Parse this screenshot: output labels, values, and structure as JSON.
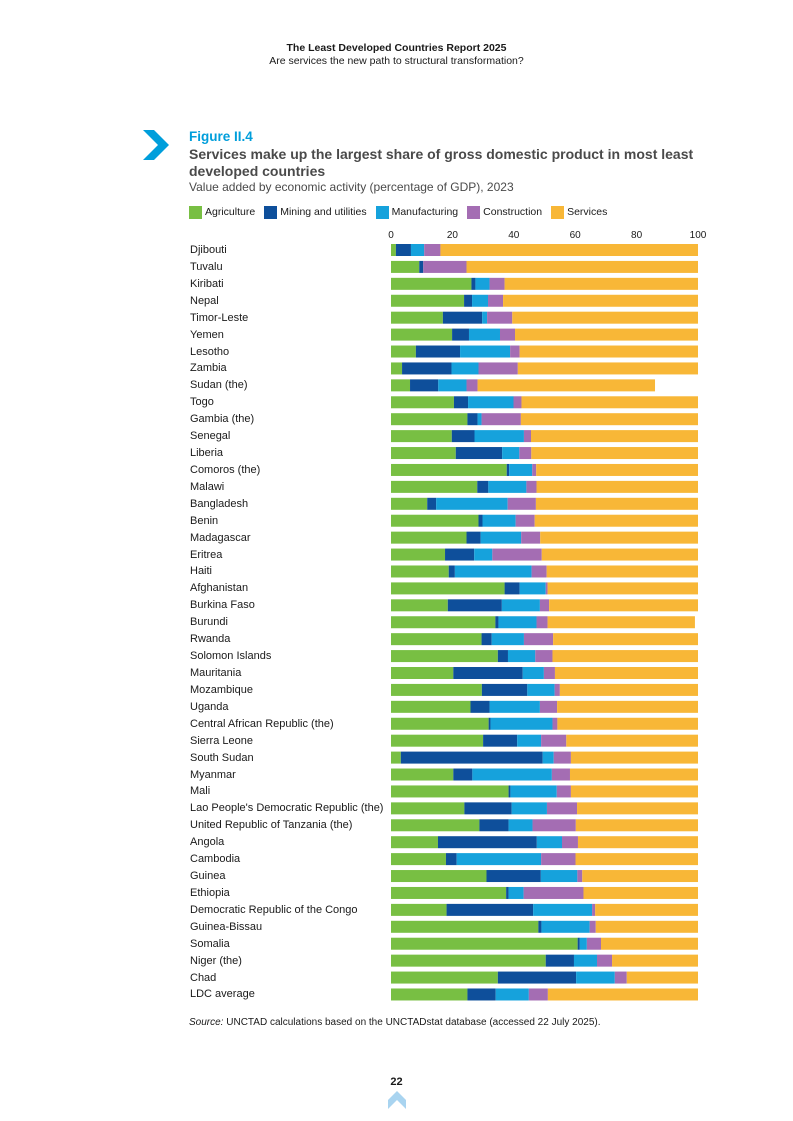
{
  "header": {
    "report_title": "The Least Developed Countries Report 2025",
    "report_subtitle": "Are services the new path to structural transformation?"
  },
  "figure": {
    "label": "Figure II.4",
    "title": "Services make up the largest share of gross domestic product in most least developed countries",
    "subtitle": "Value added by economic activity (percentage of GDP), 2023"
  },
  "colors": {
    "Agriculture": "#78bf43",
    "Mining and utilities": "#0e4f9b",
    "Manufacturing": "#16a2dc",
    "Construction": "#a46db3",
    "Services": "#f8b737",
    "title_blue": "#009edb"
  },
  "chart_data": {
    "type": "bar",
    "orientation": "horizontal",
    "stacked": true,
    "xlim": [
      0,
      100
    ],
    "xticks": [
      0,
      20,
      40,
      60,
      80,
      100
    ],
    "legend": "top",
    "categories": [
      "Djibouti",
      "Tuvalu",
      "Kiribati",
      "Nepal",
      "Timor-Leste",
      "Yemen",
      "Lesotho",
      "Zambia",
      "Sudan (the)",
      "Togo",
      "Gambia (the)",
      "Senegal",
      "Liberia",
      "Comoros (the)",
      "Malawi",
      "Bangladesh",
      "Benin",
      "Madagascar",
      "Eritrea",
      "Haiti",
      "Afghanistan",
      "Burkina Faso",
      "Burundi",
      "Rwanda",
      "Solomon Islands",
      "Mauritania",
      "Mozambique",
      "Uganda",
      "Central African Republic (the)",
      "Sierra Leone",
      "South Sudan",
      "Myanmar",
      "Mali",
      "Lao People's Democratic Republic (the)",
      "United Republic of Tanzania (the)",
      "Angola",
      "Cambodia",
      "Guinea",
      "Ethiopia",
      "Democratic Republic of the Congo",
      "Guinea-Bissau",
      "Somalia",
      "Niger (the)",
      "Chad",
      "LDC average"
    ],
    "series": [
      {
        "name": "Agriculture",
        "values": [
          1.6,
          9.2,
          26.2,
          23.8,
          16.9,
          19.9,
          8.1,
          3.6,
          6.2,
          20.5,
          24.9,
          19.8,
          21.1,
          37.7,
          28.1,
          11.8,
          28.5,
          24.6,
          17.6,
          18.8,
          37.0,
          18.5,
          34.0,
          29.5,
          34.8,
          20.3,
          29.6,
          25.9,
          31.8,
          30.0,
          3.2,
          20.3,
          38.3,
          23.9,
          28.8,
          15.3,
          17.9,
          31.1,
          37.5,
          18.1,
          48.0,
          60.8,
          50.4,
          34.8,
          24.9
        ]
      },
      {
        "name": "Mining and utilities",
        "values": [
          4.9,
          1.3,
          1.3,
          2.6,
          12.8,
          5.5,
          14.4,
          16.1,
          9.2,
          4.6,
          3.3,
          7.4,
          15.1,
          0.8,
          3.6,
          2.9,
          1.3,
          4.6,
          9.5,
          2.0,
          4.9,
          17.6,
          1.0,
          3.3,
          3.3,
          22.6,
          14.8,
          6.2,
          0.6,
          11.1,
          46.2,
          6.2,
          0.6,
          15.4,
          9.5,
          32.2,
          3.5,
          17.7,
          0.8,
          28.2,
          1.0,
          0.7,
          9.2,
          25.5,
          9.2
        ]
      },
      {
        "name": "Manufacturing",
        "values": [
          4.3,
          0,
          4.6,
          5.2,
          1.6,
          10.1,
          16.3,
          8.8,
          9.2,
          14.8,
          1.3,
          16.1,
          5.6,
          7.5,
          12.4,
          23.3,
          10.8,
          13.2,
          5.9,
          25.0,
          8.5,
          12.4,
          12.4,
          10.5,
          8.9,
          6.9,
          8.9,
          16.4,
          20.2,
          7.8,
          3.6,
          25.9,
          15.1,
          11.5,
          7.8,
          8.2,
          27.5,
          11.9,
          4.9,
          19.2,
          15.7,
          2.3,
          7.5,
          12.6,
          10.8
        ]
      },
      {
        "name": "Construction",
        "values": [
          5.3,
          14.1,
          4.9,
          4.9,
          8.2,
          4.9,
          3.1,
          12.8,
          3.6,
          2.6,
          12.8,
          2.3,
          3.9,
          1.3,
          3.3,
          9.2,
          6.2,
          6.2,
          16.1,
          4.9,
          0.6,
          3.0,
          3.6,
          9.5,
          5.6,
          3.6,
          1.7,
          5.6,
          1.6,
          8.2,
          5.6,
          5.9,
          4.6,
          9.8,
          14.1,
          5.2,
          11.2,
          1.6,
          19.5,
          1.0,
          2.0,
          4.6,
          4.9,
          3.9,
          6.2
        ]
      },
      {
        "name": "Services",
        "values": [
          83.9,
          75.4,
          63.0,
          63.5,
          60.5,
          59.6,
          58.1,
          58.7,
          57.8,
          57.5,
          57.7,
          54.4,
          54.3,
          52.7,
          52.6,
          52.8,
          53.2,
          51.4,
          50.9,
          49.3,
          49.0,
          48.5,
          48.0,
          47.2,
          47.4,
          46.6,
          45.0,
          45.9,
          45.8,
          42.9,
          41.4,
          41.7,
          41.4,
          39.4,
          39.8,
          39.1,
          39.9,
          37.7,
          37.3,
          33.5,
          33.3,
          31.6,
          28.0,
          23.2,
          48.9
        ]
      }
    ]
  },
  "source": {
    "label": "Source:",
    "text": "UNCTAD calculations based on the UNCTADstat database (accessed 22 July 2025)."
  },
  "page_number": "22"
}
